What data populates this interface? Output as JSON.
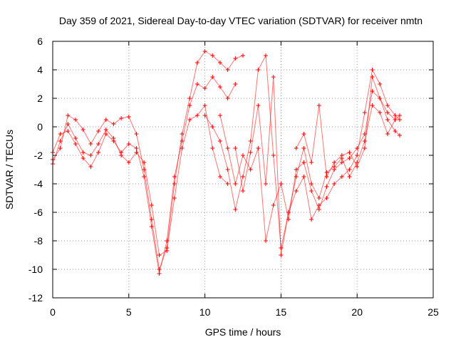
{
  "chart_data": {
    "type": "scatter",
    "title": "Day 359 of 2021, Sidereal Day-to-day VTEC variation (SDTVAR) for receiver nmtn",
    "xlabel": "GPS time / hours",
    "ylabel": "SDTVAR / TECUs",
    "xlim": [
      0,
      25
    ],
    "ylim": [
      -12,
      6
    ],
    "x_ticks": [
      0,
      5,
      10,
      15,
      20,
      25
    ],
    "y_ticks": [
      -12,
      -10,
      -8,
      -6,
      -4,
      -2,
      0,
      2,
      4,
      6
    ],
    "grid": true,
    "marker": "plus",
    "color": "#ff0000",
    "series": [
      {
        "x": [
          0,
          0.5,
          1,
          1.5,
          2,
          2.5,
          3,
          3.5,
          4,
          4.5,
          5,
          5.5,
          6,
          6.5,
          7,
          7.5,
          8,
          8.5,
          9,
          9.5,
          10,
          10.5,
          11,
          11.5,
          12,
          12.5
        ],
        "y": [
          -2.3,
          -1.5,
          0.8,
          0.5,
          -0.2,
          -1.2,
          -0.3,
          0.5,
          0.2,
          0.6,
          0.7,
          -0.5,
          -3,
          -6.5,
          -10,
          -8.5,
          -4,
          -0.5,
          2,
          4.5,
          5.3,
          5,
          4.5,
          4,
          4.8,
          5
        ]
      },
      {
        "x": [
          0,
          0.5,
          1,
          1.5,
          2,
          2.5,
          3,
          3.5,
          4,
          4.5,
          5,
          5.5,
          6,
          6.5,
          7,
          7.5,
          8,
          8.5,
          9,
          9.5,
          10,
          10.5,
          11,
          11.5,
          12
        ],
        "y": [
          -1.8,
          -0.5,
          -0.3,
          -1.2,
          -2.2,
          -2.8,
          -1.8,
          -0.5,
          -1,
          -1.8,
          -1.2,
          -1.5,
          -3.5,
          -7,
          -10.3,
          -8,
          -3.5,
          -1,
          1.5,
          3,
          2.7,
          3.5,
          2.8,
          2,
          3
        ]
      },
      {
        "x": [
          0,
          0.5,
          1,
          1.5,
          2,
          2.5,
          3,
          3.5,
          4,
          4.5,
          5,
          5.5,
          6,
          6.5,
          7,
          7.5,
          8,
          8.5,
          9,
          9.5,
          10,
          10.5,
          11,
          11.5
        ],
        "y": [
          -2.6,
          -1,
          0.2,
          -0.8,
          -1.8,
          -2,
          -1.2,
          -0.2,
          -0.8,
          -2,
          -2.5,
          -1.8,
          -2.5,
          -5.5,
          -9,
          -8.7,
          -5,
          -1.5,
          0.5,
          0.8,
          1.5,
          -1.5,
          -3.5,
          -4
        ]
      },
      {
        "x": [
          10,
          10.5,
          11,
          11.5,
          12,
          12.5,
          13,
          13.5,
          14,
          14.5,
          15,
          15.5,
          16,
          16.5,
          17,
          17.5,
          18,
          18.5,
          19,
          19.5,
          20,
          20.5,
          21,
          21.5,
          22,
          22.5,
          22.8
        ],
        "y": [
          0.8,
          0,
          -1,
          -3,
          -5.8,
          -3.5,
          -1,
          4,
          5,
          -2,
          -8.5,
          -6,
          -4.5,
          -3.5,
          -6.5,
          -5.5,
          -5,
          -4,
          -3.5,
          -3,
          -2,
          1,
          4,
          3,
          1.5,
          0.8,
          0.5
        ]
      },
      {
        "x": [
          11,
          11.5,
          12,
          12.5,
          13,
          13.5,
          14,
          14.5,
          15,
          15.5,
          16,
          16.5,
          17,
          17.5,
          18,
          18.5,
          19,
          19.5,
          20,
          20.5,
          21,
          21.5,
          22,
          22.5,
          22.8
        ],
        "y": [
          0.8,
          -1.5,
          -4,
          -2,
          -3,
          -1.5,
          -8,
          -5.5,
          -4,
          -6.5,
          -3,
          -2.5,
          -4.5,
          -5.8,
          -4.2,
          -3,
          -2.5,
          -2.2,
          -1.5,
          -0.5,
          2.5,
          2,
          0.5,
          -0.3,
          -0.6
        ]
      },
      {
        "x": [
          12,
          12.5,
          13,
          13.5,
          14,
          14.5,
          15,
          15.5,
          16,
          16.5,
          17,
          17.5,
          18,
          18.5,
          19,
          19.5,
          20,
          20.5,
          21,
          21.5,
          22,
          22.5,
          22.8
        ],
        "y": [
          -1.5,
          -4.5,
          -1.8,
          1.5,
          -4,
          3.5,
          -9,
          -6,
          -3.5,
          -1.5,
          -4,
          -5,
          -3.2,
          -2.8,
          -2.2,
          -3.5,
          -2.5,
          -1,
          1.5,
          1,
          -0.5,
          0.5,
          0.8
        ]
      },
      {
        "x": [
          16,
          16.5,
          17,
          17.5,
          18,
          18.5,
          19,
          19.5,
          20,
          20.5,
          21,
          21.5,
          22,
          22.5
        ],
        "y": [
          -1.5,
          -0.5,
          -2.5,
          1.5,
          -3.5,
          -2.5,
          -2,
          -1.8,
          -2.8,
          -1.5,
          3.5,
          2,
          1,
          0.5
        ]
      }
    ]
  }
}
